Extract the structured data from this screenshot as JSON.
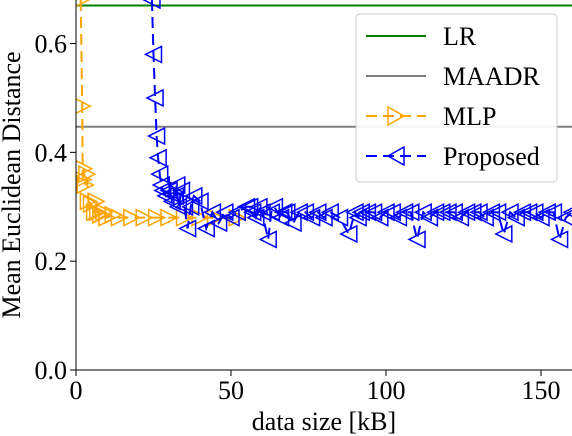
{
  "chart_data": {
    "type": "line",
    "xlabel": "data size [kB]",
    "ylabel": "Mean Euclidean Distance",
    "xlim": [
      0,
      160
    ],
    "ylim": [
      0,
      0.68
    ],
    "x_ticks": [
      0,
      50,
      100,
      150
    ],
    "y_ticks": [
      0.0,
      0.2,
      0.4,
      0.6
    ],
    "x_tick_labels": [
      "0",
      "50",
      "100",
      "150"
    ],
    "y_tick_labels": [
      "0.0",
      "0.2",
      "0.4",
      "0.6"
    ],
    "grid": false,
    "legend_position": "top-right",
    "legend": [
      "LR",
      "MAADR",
      "MLP",
      "Proposed"
    ],
    "series": [
      {
        "name": "LR",
        "style": "hline",
        "color": "#008000",
        "y": 0.67
      },
      {
        "name": "MAADR",
        "style": "hline",
        "color": "#808080",
        "y": 0.447
      },
      {
        "name": "MLP",
        "style": "dashed-triangle-right",
        "color": "#FFA500",
        "x": [
          1.5,
          2,
          2.2,
          2.5,
          3,
          3.5,
          4,
          5,
          6,
          6.5,
          7,
          8,
          9,
          10,
          12,
          14,
          18,
          22,
          26,
          30,
          35,
          40,
          45,
          52
        ],
        "y": [
          0.68,
          0.485,
          0.35,
          0.37,
          0.34,
          0.36,
          0.31,
          0.305,
          0.29,
          0.31,
          0.29,
          0.285,
          0.29,
          0.28,
          0.285,
          0.28,
          0.28,
          0.28,
          0.28,
          0.28,
          0.28,
          0.28,
          0.28,
          0.28
        ]
      },
      {
        "name": "Proposed",
        "style": "dashed-triangle-left",
        "color": "#0000FF",
        "x": [
          24.5,
          25,
          25.5,
          26,
          26.5,
          27,
          27.5,
          28,
          29,
          30,
          31,
          32,
          32.5,
          33,
          34,
          35,
          36,
          37,
          38,
          40,
          42,
          44,
          46,
          48,
          50,
          52,
          55,
          56,
          57,
          58,
          59,
          60,
          62,
          63,
          64,
          66,
          67,
          68,
          70,
          72,
          74,
          76,
          78,
          80,
          82,
          85,
          88,
          90,
          91,
          92,
          94,
          96,
          98,
          100,
          102,
          104,
          106,
          108,
          110,
          112,
          114,
          116,
          118,
          120,
          122,
          124,
          126,
          128,
          130,
          132,
          134,
          136,
          138,
          140,
          142,
          144,
          146,
          148,
          150,
          152,
          154,
          156,
          158,
          160
        ],
        "y": [
          0.68,
          0.58,
          0.5,
          0.43,
          0.39,
          0.36,
          0.34,
          0.33,
          0.32,
          0.33,
          0.31,
          0.32,
          0.34,
          0.3,
          0.33,
          0.3,
          0.26,
          0.3,
          0.32,
          0.31,
          0.26,
          0.29,
          0.27,
          0.29,
          0.28,
          0.29,
          0.3,
          0.3,
          0.29,
          0.28,
          0.3,
          0.29,
          0.24,
          0.29,
          0.3,
          0.28,
          0.29,
          0.29,
          0.27,
          0.29,
          0.29,
          0.28,
          0.29,
          0.28,
          0.29,
          0.28,
          0.25,
          0.29,
          0.28,
          0.29,
          0.29,
          0.29,
          0.28,
          0.29,
          0.29,
          0.28,
          0.29,
          0.29,
          0.24,
          0.29,
          0.28,
          0.29,
          0.29,
          0.29,
          0.29,
          0.28,
          0.29,
          0.29,
          0.29,
          0.28,
          0.29,
          0.29,
          0.25,
          0.29,
          0.28,
          0.29,
          0.29,
          0.29,
          0.28,
          0.29,
          0.29,
          0.24,
          0.28,
          0.29
        ]
      }
    ]
  }
}
